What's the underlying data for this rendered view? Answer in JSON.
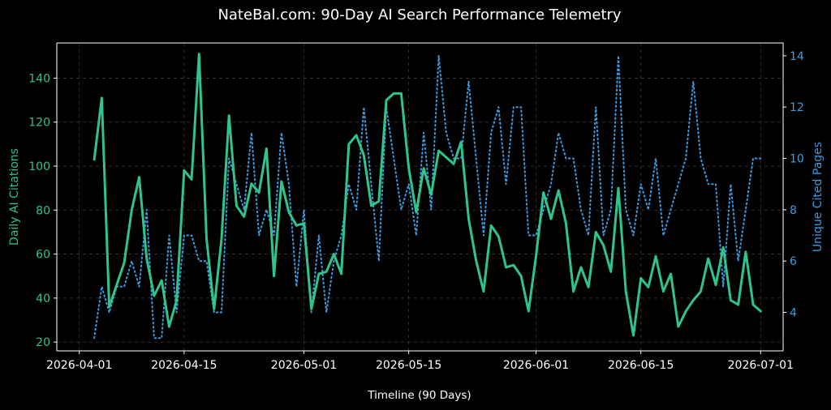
{
  "chart_data": {
    "type": "line",
    "title": "NateBal.com: 90-Day AI Search Performance Telemetry",
    "xlabel": "Timeline (90 Days)",
    "ylabel_left": "Daily AI Citations",
    "ylabel_right": "Unique Cited Pages",
    "x_start": "2026-04-03",
    "xlim": [
      "2026-03-29",
      "2026-07-04"
    ],
    "ylim_left": [
      16,
      156
    ],
    "ylim_right": [
      2.5,
      14.5
    ],
    "x_ticks": [
      "2026-04-01",
      "2026-04-15",
      "2026-05-01",
      "2026-05-15",
      "2026-06-01",
      "2026-06-15",
      "2026-07-01"
    ],
    "y_ticks_left": [
      20,
      40,
      60,
      80,
      100,
      120,
      140
    ],
    "y_ticks_right": [
      4,
      6,
      8,
      10,
      12,
      14
    ],
    "grid": true,
    "colors": {
      "left": "#2ec48b",
      "right": "#3d9be0"
    },
    "series": [
      {
        "axis": "left",
        "style": "solid",
        "values": [
          103,
          131,
          36,
          46,
          56,
          80,
          95,
          58,
          41,
          48,
          27,
          39,
          98,
          94,
          151,
          67,
          35,
          67,
          123,
          82,
          77,
          92,
          88,
          108,
          50,
          93,
          79,
          73,
          74,
          35,
          51,
          52,
          60,
          51,
          110,
          114,
          105,
          82,
          84,
          130,
          133,
          133,
          99,
          79,
          99,
          87,
          107,
          104,
          101,
          111,
          76,
          57,
          43,
          73,
          68,
          54,
          55,
          50,
          34,
          59,
          88,
          76,
          89,
          74,
          43,
          54,
          45,
          70,
          64,
          52,
          90,
          43,
          23,
          49,
          45,
          59,
          43,
          51,
          27,
          34,
          39,
          43,
          58,
          46,
          63,
          39,
          37,
          61,
          37,
          34
        ]
      },
      {
        "axis": "right",
        "style": "dotted",
        "values": [
          3,
          5,
          4,
          5,
          5,
          6,
          5,
          8,
          3,
          3,
          7,
          4,
          7,
          7,
          6,
          6,
          4,
          4,
          10,
          9,
          8,
          11,
          7,
          8,
          7,
          11,
          9,
          5,
          8,
          4,
          7,
          4,
          6,
          7,
          9,
          8,
          12,
          9,
          6,
          12,
          10,
          8,
          9,
          7,
          11,
          8,
          14,
          11,
          10,
          10,
          13,
          10,
          7,
          11,
          12,
          9,
          12,
          12,
          7,
          7,
          8,
          9,
          11,
          10,
          10,
          8,
          7,
          12,
          7,
          8,
          14,
          8,
          7,
          9,
          8,
          10,
          7,
          8,
          9,
          10,
          13,
          10,
          9,
          9,
          5,
          9,
          6,
          8,
          10,
          10
        ]
      }
    ]
  }
}
